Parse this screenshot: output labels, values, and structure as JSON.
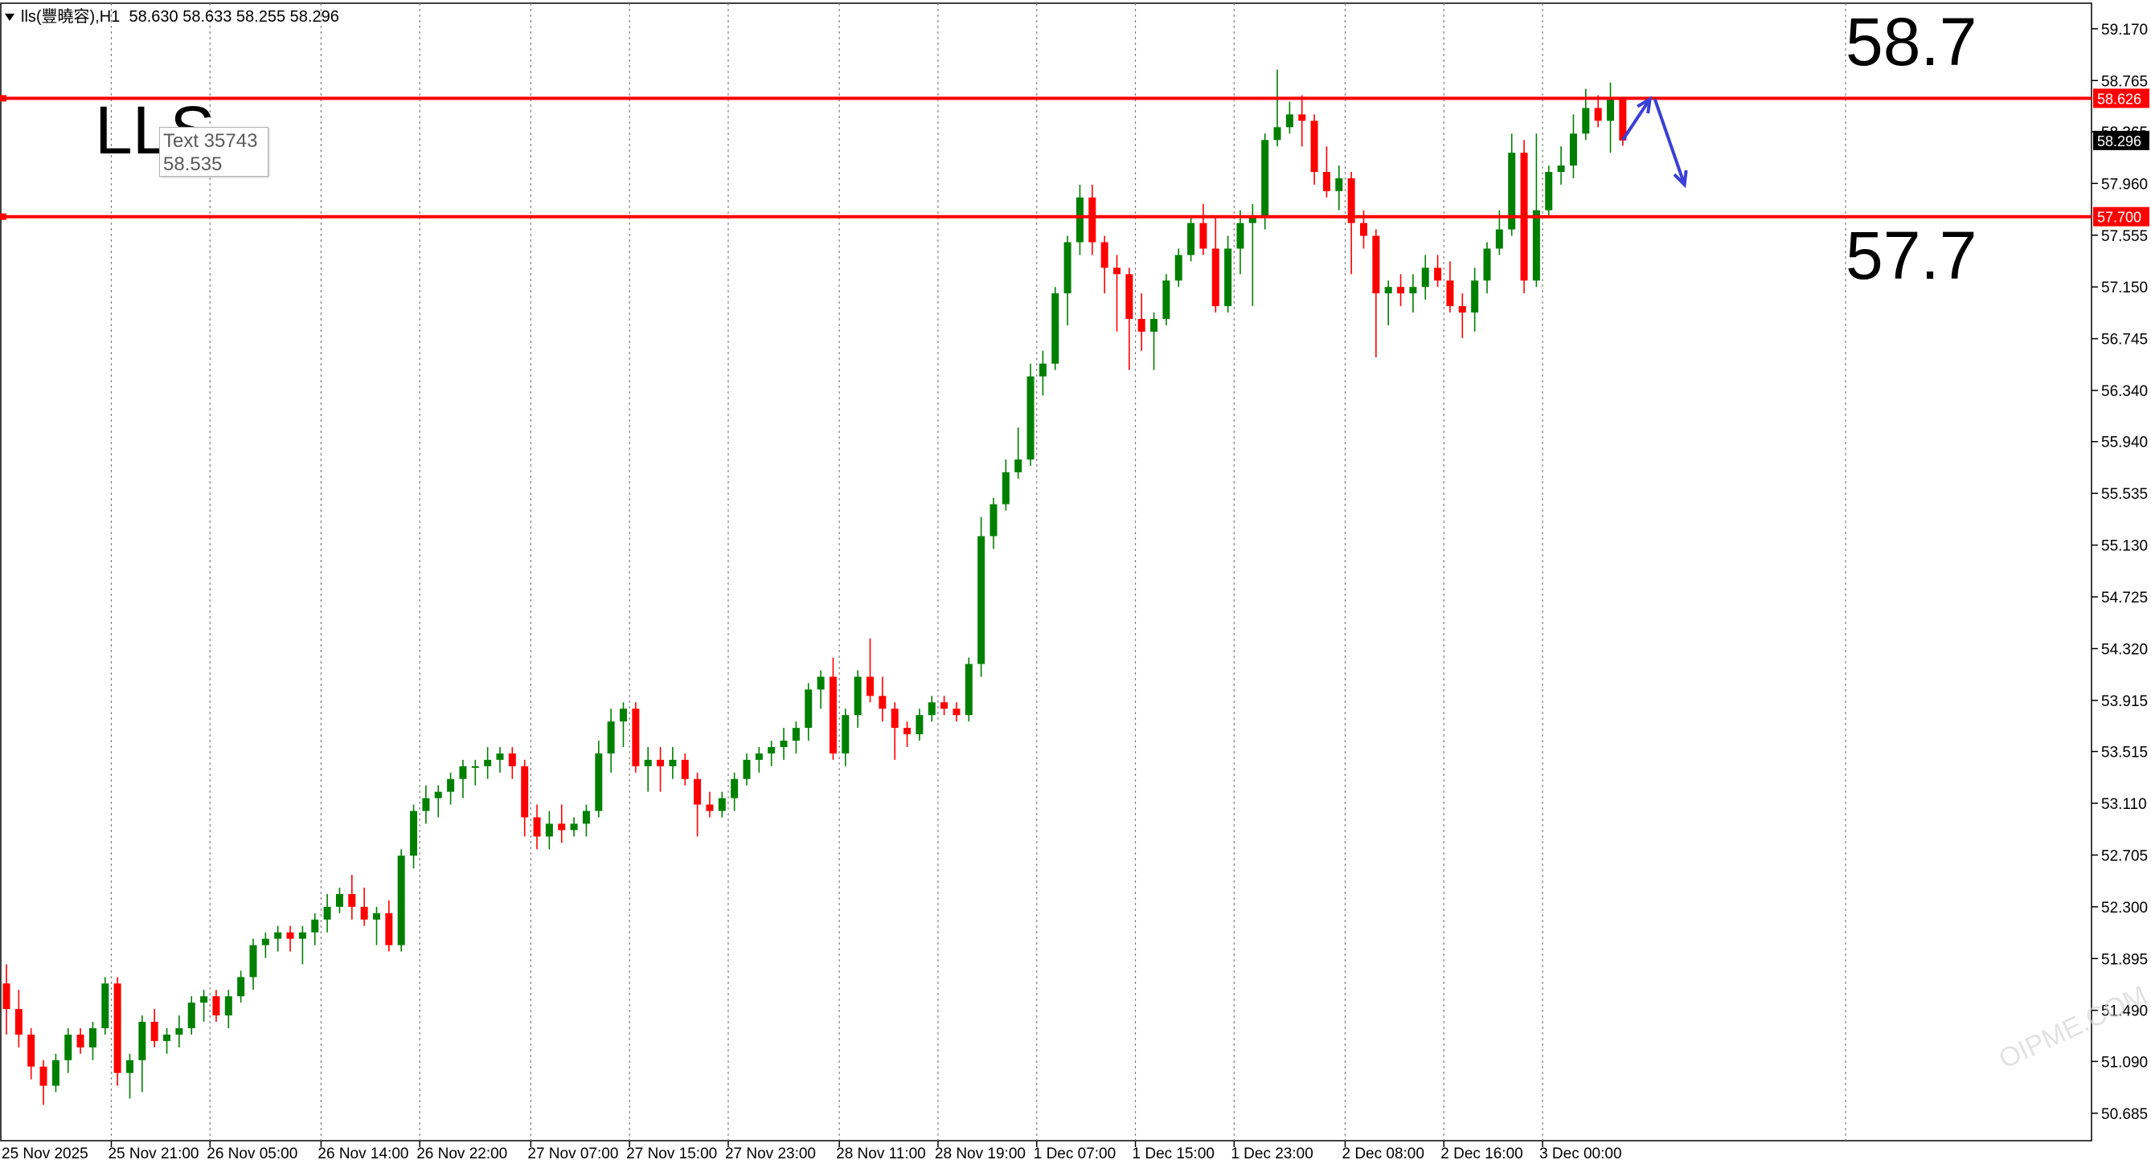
{
  "header": {
    "symbol": "lls(豐曉容),H1",
    "ohlc": "58.630 58.633 58.255 58.296"
  },
  "overlay_text": {
    "symbol_label": "LLS",
    "tooltip_line1": "Text 35743",
    "tooltip_line2": "58.535",
    "upper_level_label": "58.7",
    "lower_level_label": "57.7",
    "watermark": "OIPME.COM"
  },
  "colors": {
    "bull": "#008000",
    "bear": "#ff0000",
    "level_line": "#ff0000",
    "arrow": "#3a3fd6",
    "current_price_bg": "#000000",
    "grid": "#7f7f7f"
  },
  "chart_data": {
    "type": "candlestick",
    "title": "",
    "ylim": [
      50.47,
      59.37
    ],
    "y_ticks": [
      "59.170",
      "58.765",
      "58.365",
      "57.960",
      "57.555",
      "57.150",
      "56.745",
      "56.340",
      "55.940",
      "55.535",
      "55.130",
      "54.725",
      "54.320",
      "53.915",
      "53.515",
      "53.110",
      "52.705",
      "52.300",
      "51.895",
      "51.490",
      "51.090",
      "50.685"
    ],
    "x_tick_labels": [
      "25 Nov 2025",
      "25 Nov 21:00",
      "26 Nov 05:00",
      "26 Nov 14:00",
      "26 Nov 22:00",
      "27 Nov 07:00",
      "27 Nov 15:00",
      "27 Nov 23:00",
      "28 Nov 11:00",
      "28 Nov 19:00",
      "1 Dec 07:00",
      "1 Dec 15:00",
      "1 Dec 23:00",
      "2 Dec 08:00",
      "2 Dec 16:00",
      "3 Dec 00:00"
    ],
    "x_tick_candle_index": [
      0,
      8,
      16,
      25,
      33,
      42,
      50,
      58,
      67,
      75,
      83,
      91,
      99,
      108,
      116,
      124
    ],
    "grid_vertical": "dotted",
    "candles": [
      [
        51.7,
        51.85,
        51.3,
        51.5
      ],
      [
        51.5,
        51.65,
        51.2,
        51.3
      ],
      [
        51.3,
        51.35,
        50.95,
        51.05
      ],
      [
        51.05,
        51.1,
        50.75,
        50.9
      ],
      [
        50.9,
        51.15,
        50.85,
        51.1
      ],
      [
        51.1,
        51.35,
        51.0,
        51.3
      ],
      [
        51.3,
        51.35,
        51.15,
        51.2
      ],
      [
        51.2,
        51.4,
        51.1,
        51.35
      ],
      [
        51.35,
        51.75,
        51.3,
        51.7
      ],
      [
        51.7,
        51.75,
        50.9,
        51.0
      ],
      [
        51.0,
        51.15,
        50.8,
        51.1
      ],
      [
        51.1,
        51.45,
        50.85,
        51.4
      ],
      [
        51.4,
        51.5,
        51.2,
        51.25
      ],
      [
        51.25,
        51.35,
        51.15,
        51.3
      ],
      [
        51.3,
        51.45,
        51.2,
        51.35
      ],
      [
        51.35,
        51.6,
        51.3,
        51.55
      ],
      [
        51.55,
        51.65,
        51.4,
        51.6
      ],
      [
        51.6,
        51.65,
        51.4,
        51.45
      ],
      [
        51.45,
        51.65,
        51.35,
        51.6
      ],
      [
        51.6,
        51.8,
        51.55,
        51.75
      ],
      [
        51.75,
        52.05,
        51.65,
        52.0
      ],
      [
        52.0,
        52.1,
        51.9,
        52.05
      ],
      [
        52.05,
        52.15,
        51.95,
        52.1
      ],
      [
        52.1,
        52.15,
        51.95,
        52.05
      ],
      [
        52.05,
        52.15,
        51.85,
        52.1
      ],
      [
        52.1,
        52.25,
        52.0,
        52.2
      ],
      [
        52.2,
        52.4,
        52.1,
        52.3
      ],
      [
        52.3,
        52.45,
        52.25,
        52.4
      ],
      [
        52.4,
        52.55,
        52.2,
        52.3
      ],
      [
        52.3,
        52.45,
        52.15,
        52.2
      ],
      [
        52.2,
        52.3,
        52.0,
        52.25
      ],
      [
        52.25,
        52.35,
        51.95,
        52.0
      ],
      [
        52.0,
        52.75,
        51.95,
        52.7
      ],
      [
        52.7,
        53.1,
        52.6,
        53.05
      ],
      [
        53.05,
        53.25,
        52.95,
        53.15
      ],
      [
        53.15,
        53.25,
        53.0,
        53.2
      ],
      [
        53.2,
        53.35,
        53.1,
        53.3
      ],
      [
        53.3,
        53.45,
        53.15,
        53.4
      ],
      [
        53.4,
        53.45,
        53.25,
        53.4
      ],
      [
        53.4,
        53.55,
        53.3,
        53.45
      ],
      [
        53.45,
        53.55,
        53.35,
        53.5
      ],
      [
        53.5,
        53.55,
        53.3,
        53.4
      ],
      [
        53.4,
        53.45,
        52.85,
        53.0
      ],
      [
        53.0,
        53.1,
        52.75,
        52.85
      ],
      [
        52.85,
        53.05,
        52.75,
        52.95
      ],
      [
        52.95,
        53.1,
        52.8,
        52.9
      ],
      [
        52.9,
        53.0,
        52.85,
        52.95
      ],
      [
        52.95,
        53.1,
        52.85,
        53.05
      ],
      [
        53.05,
        53.6,
        53.0,
        53.5
      ],
      [
        53.5,
        53.85,
        53.35,
        53.75
      ],
      [
        53.75,
        53.9,
        53.55,
        53.85
      ],
      [
        53.85,
        53.9,
        53.35,
        53.4
      ],
      [
        53.4,
        53.55,
        53.2,
        53.45
      ],
      [
        53.45,
        53.55,
        53.2,
        53.4
      ],
      [
        53.4,
        53.55,
        53.3,
        53.45
      ],
      [
        53.45,
        53.5,
        53.25,
        53.3
      ],
      [
        53.3,
        53.35,
        52.85,
        53.1
      ],
      [
        53.1,
        53.2,
        53.0,
        53.05
      ],
      [
        53.05,
        53.2,
        53.0,
        53.15
      ],
      [
        53.15,
        53.35,
        53.05,
        53.3
      ],
      [
        53.3,
        53.5,
        53.25,
        53.45
      ],
      [
        53.45,
        53.55,
        53.35,
        53.5
      ],
      [
        53.5,
        53.6,
        53.4,
        53.55
      ],
      [
        53.55,
        53.7,
        53.45,
        53.6
      ],
      [
        53.6,
        53.75,
        53.5,
        53.7
      ],
      [
        53.7,
        54.05,
        53.6,
        54.0
      ],
      [
        54.0,
        54.15,
        53.85,
        54.1
      ],
      [
        54.1,
        54.25,
        53.45,
        53.5
      ],
      [
        53.5,
        53.85,
        53.4,
        53.8
      ],
      [
        53.8,
        54.15,
        53.7,
        54.1
      ],
      [
        54.1,
        54.4,
        53.9,
        53.95
      ],
      [
        53.95,
        54.1,
        53.75,
        53.85
      ],
      [
        53.85,
        53.9,
        53.45,
        53.7
      ],
      [
        53.7,
        53.75,
        53.55,
        53.65
      ],
      [
        53.65,
        53.85,
        53.6,
        53.8
      ],
      [
        53.8,
        53.95,
        53.75,
        53.9
      ],
      [
        53.9,
        53.95,
        53.8,
        53.85
      ],
      [
        53.85,
        53.9,
        53.75,
        53.8
      ],
      [
        53.8,
        54.25,
        53.75,
        54.2
      ],
      [
        54.2,
        55.35,
        54.1,
        55.2
      ],
      [
        55.2,
        55.5,
        55.1,
        55.45
      ],
      [
        55.45,
        55.8,
        55.4,
        55.7
      ],
      [
        55.7,
        56.05,
        55.65,
        55.8
      ],
      [
        55.8,
        56.55,
        55.75,
        56.45
      ],
      [
        56.45,
        56.65,
        56.3,
        56.55
      ],
      [
        56.55,
        57.15,
        56.5,
        57.1
      ],
      [
        57.1,
        57.55,
        56.85,
        57.5
      ],
      [
        57.5,
        57.95,
        57.4,
        57.85
      ],
      [
        57.85,
        57.95,
        57.4,
        57.5
      ],
      [
        57.5,
        57.55,
        57.1,
        57.3
      ],
      [
        57.3,
        57.4,
        56.8,
        57.25
      ],
      [
        57.25,
        57.3,
        56.5,
        56.9
      ],
      [
        56.9,
        57.1,
        56.65,
        56.8
      ],
      [
        56.8,
        56.95,
        56.5,
        56.9
      ],
      [
        56.9,
        57.25,
        56.85,
        57.2
      ],
      [
        57.2,
        57.45,
        57.15,
        57.4
      ],
      [
        57.4,
        57.7,
        57.35,
        57.65
      ],
      [
        57.65,
        57.8,
        57.4,
        57.45
      ],
      [
        57.45,
        57.7,
        56.95,
        57.0
      ],
      [
        57.0,
        57.55,
        56.95,
        57.45
      ],
      [
        57.45,
        57.75,
        57.25,
        57.65
      ],
      [
        57.65,
        57.8,
        57.0,
        57.7
      ],
      [
        57.7,
        58.35,
        57.6,
        58.3
      ],
      [
        58.3,
        58.85,
        58.25,
        58.4
      ],
      [
        58.4,
        58.6,
        58.35,
        58.5
      ],
      [
        58.5,
        58.65,
        58.25,
        58.45
      ],
      [
        58.45,
        58.5,
        57.95,
        58.05
      ],
      [
        58.05,
        58.25,
        57.85,
        57.9
      ],
      [
        57.9,
        58.1,
        57.75,
        58.0
      ],
      [
        58.0,
        58.05,
        57.25,
        57.65
      ],
      [
        57.65,
        57.75,
        57.45,
        57.55
      ],
      [
        57.55,
        57.6,
        56.6,
        57.1
      ],
      [
        57.1,
        57.2,
        56.85,
        57.15
      ],
      [
        57.15,
        57.25,
        57.0,
        57.1
      ],
      [
        57.1,
        57.25,
        56.95,
        57.15
      ],
      [
        57.15,
        57.4,
        57.05,
        57.3
      ],
      [
        57.3,
        57.4,
        57.15,
        57.2
      ],
      [
        57.2,
        57.35,
        56.95,
        57.0
      ],
      [
        57.0,
        57.1,
        56.75,
        56.95
      ],
      [
        56.95,
        57.3,
        56.8,
        57.2
      ],
      [
        57.2,
        57.5,
        57.1,
        57.45
      ],
      [
        57.45,
        57.75,
        57.4,
        57.6
      ],
      [
        57.6,
        58.35,
        57.55,
        58.2
      ],
      [
        58.2,
        58.3,
        57.1,
        57.2
      ],
      [
        57.2,
        58.35,
        57.15,
        57.75
      ],
      [
        57.75,
        58.1,
        57.7,
        58.05
      ],
      [
        58.05,
        58.25,
        57.95,
        58.1
      ],
      [
        58.1,
        58.5,
        58.0,
        58.35
      ],
      [
        58.35,
        58.7,
        58.3,
        58.55
      ],
      [
        58.55,
        58.65,
        58.4,
        58.45
      ],
      [
        58.45,
        58.75,
        58.2,
        58.63
      ],
      [
        58.63,
        58.633,
        58.255,
        58.296
      ]
    ],
    "horizontal_levels": [
      {
        "price": 58.626,
        "label": "58.626"
      },
      {
        "price": 57.7,
        "label": "57.700"
      }
    ],
    "current_price": {
      "price": 58.296,
      "label": "58.296"
    },
    "partial_axis_label": "58.365",
    "arrows": [
      {
        "from": [
          131.0,
          58.3
        ],
        "to": [
          133.2,
          58.62
        ]
      },
      {
        "from": [
          133.6,
          58.62
        ],
        "to": [
          136.0,
          57.95
        ]
      }
    ]
  }
}
